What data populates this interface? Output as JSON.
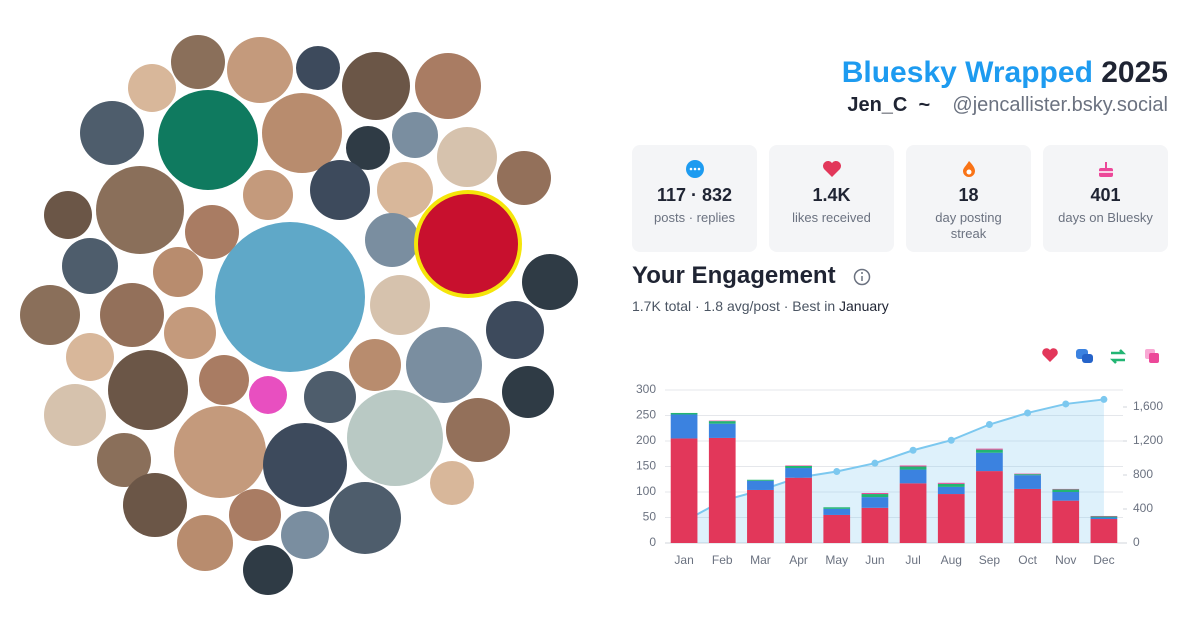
{
  "header": {
    "title": "Bluesky Wrapped",
    "year": "2025",
    "name": "Jen_C",
    "separator": "~",
    "handle": "@jencallister.bsky.social"
  },
  "stats": [
    {
      "value": "117 · 832",
      "label": "posts · replies"
    },
    {
      "value": "1.4K",
      "label": "likes received"
    },
    {
      "value": 18,
      "label": "day posting streak"
    },
    {
      "value": 401,
      "label": "days on Bluesky"
    }
  ],
  "engagement": {
    "title": "Your Engagement",
    "summary": "1.7K total · 1.8 avg/post · Best in",
    "best_month": "January"
  },
  "chart_data": {
    "type": "bar",
    "stacked": true,
    "grid": true,
    "categories": [
      "Jan",
      "Feb",
      "Mar",
      "Apr",
      "May",
      "Jun",
      "Jul",
      "Aug",
      "Sep",
      "Oct",
      "Nov",
      "Dec"
    ],
    "series": [
      {
        "color": "#e2375a",
        "values": [
          205,
          206,
          104,
          128,
          55,
          69,
          117,
          96,
          141,
          106,
          83,
          47
        ]
      },
      {
        "color": "#3b82e0",
        "values": [
          47,
          28,
          18,
          19,
          12,
          21,
          27,
          14,
          36,
          27,
          17,
          3
        ]
      },
      {
        "color": "#22b573",
        "values": [
          3,
          5,
          2,
          4,
          3,
          6,
          6,
          6,
          6,
          2,
          5,
          2
        ]
      },
      {
        "color": "#ec4899",
        "values": [
          0,
          1,
          0,
          1,
          0,
          2,
          2,
          2,
          2,
          1,
          1,
          1
        ]
      },
      {
        "type": "line",
        "axis": "y2",
        "color": "#7cc8ef",
        "values": [
          255,
          495,
          619,
          771,
          841,
          939,
          1091,
          1209,
          1394,
          1530,
          1636,
          1689
        ]
      }
    ],
    "ylim": [
      0,
      300
    ],
    "yticks": [
      0,
      50,
      100,
      150,
      200,
      250,
      300
    ],
    "y2lim": [
      0,
      1800
    ],
    "y2ticks": [
      0,
      400,
      800,
      {
        "value": 1200,
        "label": "1,200"
      },
      {
        "value": 1600,
        "label": "1,600"
      }
    ]
  }
}
